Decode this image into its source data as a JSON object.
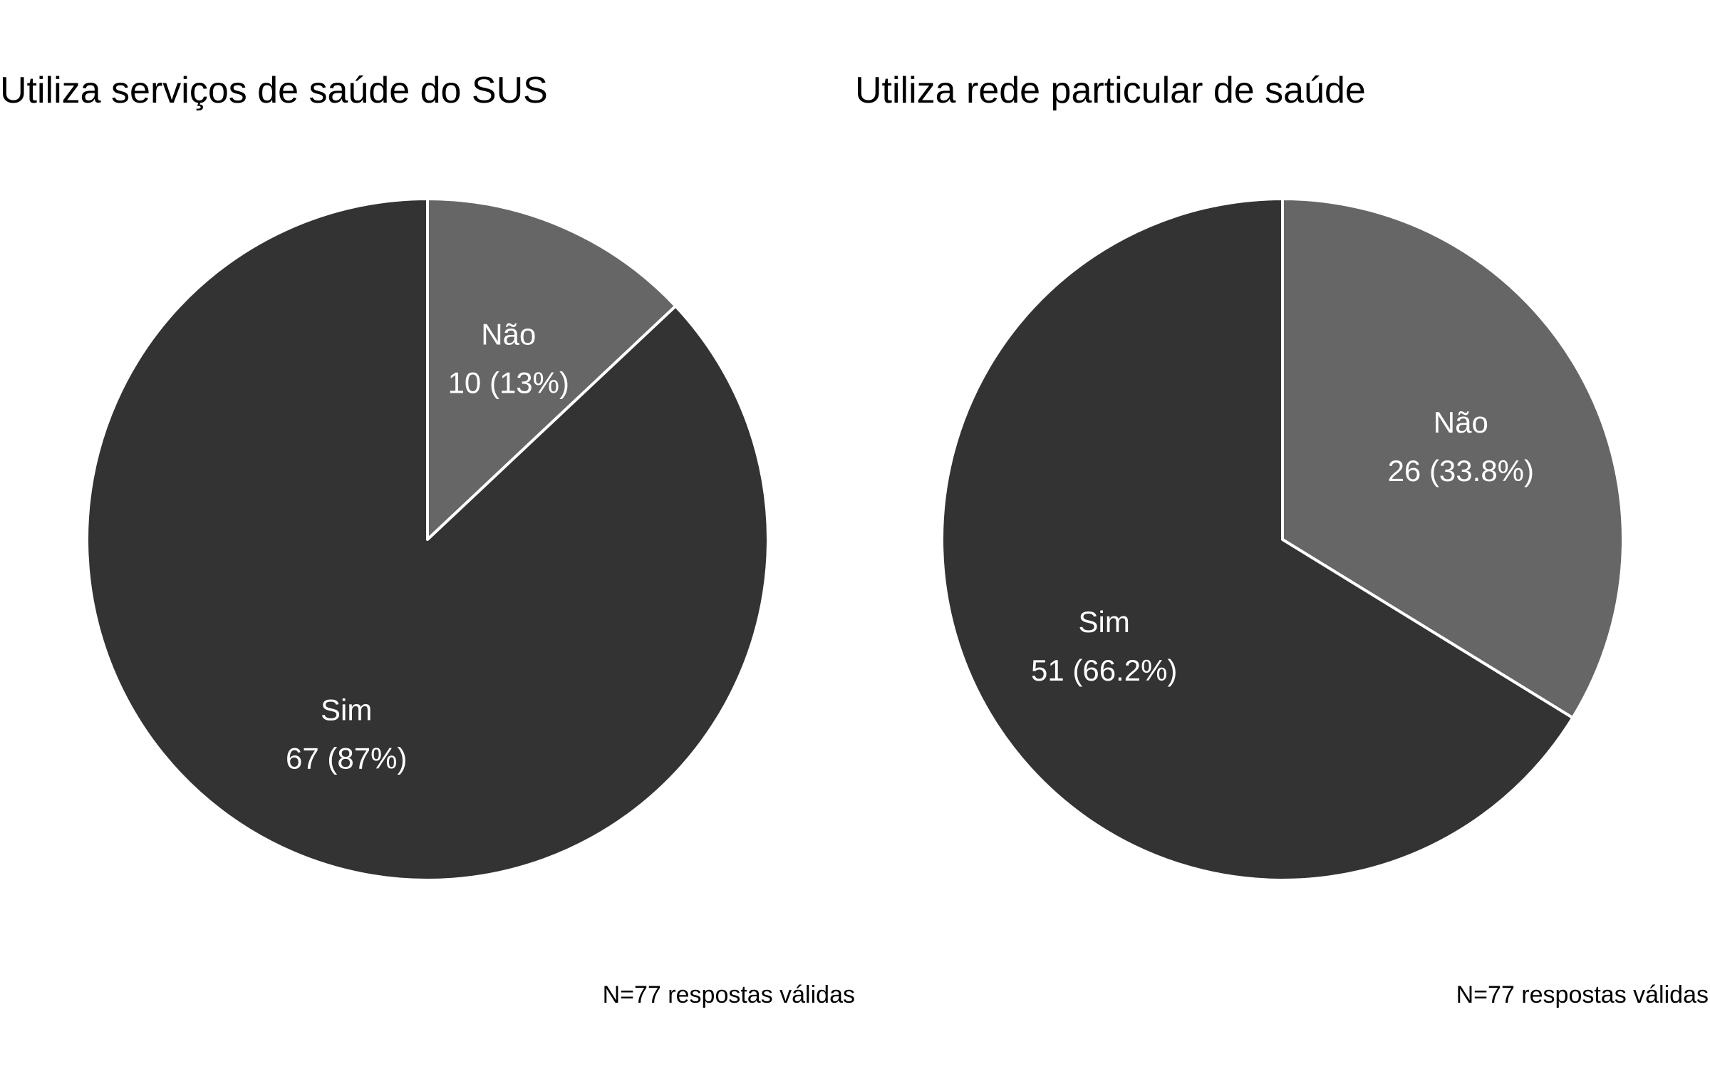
{
  "chart_data": [
    {
      "type": "pie",
      "title": "Utiliza serviços de saúde do SUS",
      "slices": [
        {
          "label": "Não",
          "value": 10,
          "display": "10 (13%)",
          "color": "#666666"
        },
        {
          "label": "Sim",
          "value": 67,
          "display": "67 (87%)",
          "color": "#333333"
        }
      ],
      "start_angle": "12 o'clock",
      "direction": "clockwise",
      "slice_border_color": "#ffffff",
      "footnote": "N=77 respostas válidas"
    },
    {
      "type": "pie",
      "title": "Utiliza rede particular de saúde",
      "slices": [
        {
          "label": "Não",
          "value": 26,
          "display": "26 (33.8%)",
          "color": "#666666"
        },
        {
          "label": "Sim",
          "value": 51,
          "display": "51 (66.2%)",
          "color": "#333333"
        }
      ],
      "start_angle": "12 o'clock",
      "direction": "clockwise",
      "slice_border_color": "#ffffff",
      "footnote": "N=77 respostas válidas"
    }
  ]
}
